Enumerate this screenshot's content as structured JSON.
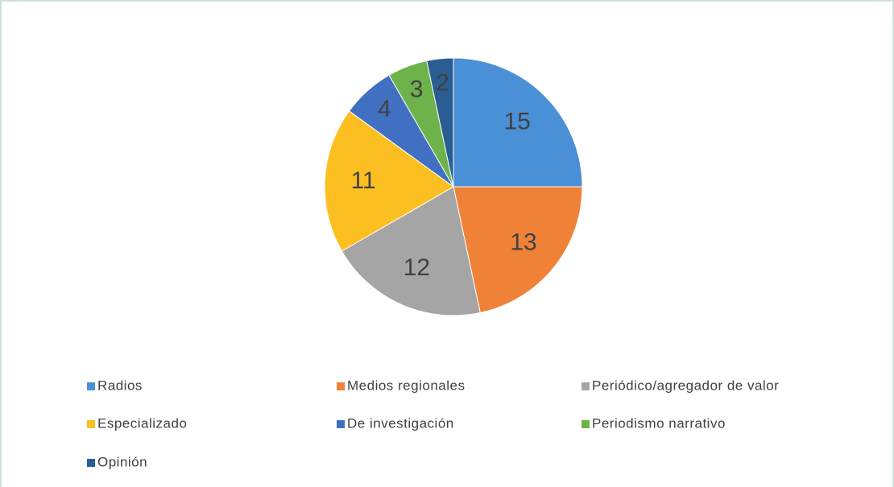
{
  "chart_data": {
    "type": "pie",
    "categories": [
      "Radios",
      "Medios regionales",
      "Periódico/agregador de valor",
      "Especializado",
      "De investigación",
      "Periodismo narrativo",
      "Opinión"
    ],
    "values": [
      15,
      13,
      12,
      11,
      4,
      3,
      2
    ],
    "colors": [
      "#4a90d6",
      "#f08238",
      "#a5a5a5",
      "#fcbf22",
      "#4170c2",
      "#6db24b",
      "#2a5e92"
    ],
    "legend": "bottom"
  }
}
